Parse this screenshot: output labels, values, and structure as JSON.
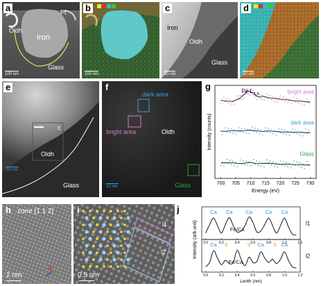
{
  "panels": {
    "a": {
      "label": "a",
      "pt": "Pt",
      "oldh": "Oldh",
      "iron": "Iron",
      "glass": "Glass",
      "scale": "100 nm"
    },
    "b": {
      "label": "b",
      "scale": "100 nm"
    },
    "c": {
      "label": "c",
      "iron": "Iron",
      "oldh": "Oldh",
      "glass": "Glass",
      "scale": "20 nm"
    },
    "d": {
      "label": "d",
      "scale": "20 nm"
    },
    "e": {
      "label": "e",
      "box": "c",
      "oldh": "Oldh",
      "glass": "Glass",
      "scale": "20 nm"
    },
    "f": {
      "label": "f",
      "dark": "dark area",
      "bright": "bright area",
      "oldh": "Oldh",
      "glass": "Glass",
      "scale": "10 nm"
    },
    "h": {
      "label": "h",
      "zone": "zone [1 1 2]",
      "scale": "2 nm"
    },
    "i": {
      "label": "i",
      "l1": "l1",
      "l2": "l2",
      "scale": "0.5 nm"
    }
  },
  "colors": {
    "bright": "#d77ad0",
    "dark": "#3aa0d6",
    "glass": "#2e9e3c",
    "ca": "#2f8ed1",
    "s": "#e0a020",
    "fe": "#1a1a1a",
    "atomYellow": "#f0e030",
    "atomBlue": "#9fd0f0"
  },
  "chart_data": [
    {
      "type": "line",
      "panel": "g",
      "label": "g",
      "annotation": "Fe L",
      "annotation_sub": "2,3",
      "xlabel": "Energy (eV)",
      "ylabel": "Intensity (counts)",
      "xlim": [
        698,
        732
      ],
      "xticks": [
        700,
        705,
        710,
        715,
        720,
        725,
        730
      ],
      "series": [
        {
          "name": "bright area",
          "color": "#d77ad0",
          "x": [
            700,
            702,
            704,
            706,
            707,
            708,
            709,
            710,
            711,
            712,
            713,
            714,
            716,
            718,
            720,
            722,
            724,
            726,
            728,
            730
          ],
          "y": [
            0.55,
            0.52,
            0.5,
            0.62,
            0.7,
            0.82,
            0.95,
            0.9,
            0.85,
            0.72,
            0.7,
            0.72,
            0.66,
            0.63,
            0.6,
            0.58,
            0.54,
            0.52,
            0.5,
            0.48
          ]
        },
        {
          "name": "dark area",
          "color": "#3aa0d6",
          "x": [
            700,
            702,
            704,
            706,
            708,
            710,
            712,
            714,
            716,
            718,
            720,
            722,
            724,
            726,
            728,
            730
          ],
          "y": [
            0.55,
            0.56,
            0.58,
            0.57,
            0.58,
            0.6,
            0.57,
            0.55,
            0.57,
            0.55,
            0.53,
            0.52,
            0.52,
            0.51,
            0.5,
            0.5
          ]
        },
        {
          "name": "Glass",
          "color": "#2e9e3c",
          "x": [
            700,
            702,
            704,
            706,
            708,
            710,
            712,
            714,
            716,
            718,
            720,
            722,
            724,
            726,
            728,
            730
          ],
          "y": [
            0.52,
            0.54,
            0.53,
            0.5,
            0.52,
            0.55,
            0.5,
            0.5,
            0.52,
            0.49,
            0.47,
            0.48,
            0.46,
            0.46,
            0.44,
            0.45
          ]
        }
      ]
    },
    {
      "type": "line",
      "panel": "j",
      "label": "j",
      "xlabel": "Lenth (nm)",
      "ylabel": "Intensity (arb.unit)",
      "xlim": [
        -0.05,
        1.2
      ],
      "xticks": [
        0.0,
        0.2,
        0.4,
        0.6,
        0.8,
        1.0,
        1.2
      ],
      "series": [
        {
          "name": "l1",
          "x": [
            0,
            0.05,
            0.1,
            0.15,
            0.2,
            0.25,
            0.3,
            0.35,
            0.4,
            0.45,
            0.5,
            0.55,
            0.6,
            0.65,
            0.7,
            0.75,
            0.8,
            0.85,
            0.9,
            0.95,
            1.0,
            1.05,
            1.1,
            1.15
          ],
          "y": [
            0.2,
            0.6,
            0.9,
            0.55,
            0.2,
            0.6,
            0.92,
            0.55,
            0.25,
            0.3,
            0.55,
            0.95,
            0.7,
            0.25,
            0.3,
            0.6,
            0.9,
            0.55,
            0.2,
            0.55,
            0.9,
            0.5,
            0.15,
            0.12
          ]
        },
        {
          "name": "l2",
          "x": [
            0,
            0.05,
            0.1,
            0.15,
            0.2,
            0.25,
            0.3,
            0.35,
            0.4,
            0.45,
            0.5,
            0.55,
            0.6,
            0.65,
            0.7,
            0.75,
            0.8,
            0.85,
            0.9,
            0.95,
            1.0,
            1.05,
            1.1,
            1.15
          ],
          "y": [
            0.15,
            0.35,
            0.9,
            0.55,
            0.25,
            0.45,
            0.3,
            0.35,
            0.92,
            0.5,
            0.2,
            0.6,
            0.35,
            0.4,
            0.85,
            0.55,
            0.35,
            0.5,
            0.3,
            0.5,
            0.85,
            0.45,
            0.15,
            0.1
          ]
        }
      ],
      "labels_l1": [
        {
          "text": "Ca",
          "x": 0.1,
          "color": "#2f8ed1"
        },
        {
          "text": "Ca",
          "x": 0.3,
          "color": "#2f8ed1"
        },
        {
          "text": "Ca",
          "x": 0.55,
          "color": "#2f8ed1"
        },
        {
          "text": "Fe/Ca",
          "x": 0.4,
          "color": "#1a1a1a",
          "low": true
        },
        {
          "text": "Ca",
          "x": 0.8,
          "color": "#2f8ed1"
        },
        {
          "text": "Ca",
          "x": 1.0,
          "color": "#2f8ed1"
        }
      ],
      "labels_l2": [
        {
          "text": "Ca",
          "x": 0.1,
          "color": "#2f8ed1"
        },
        {
          "text": "S",
          "x": 0.26,
          "color": "#e0a020"
        },
        {
          "text": "Fe/Ca",
          "x": 0.38,
          "color": "#1a1a1a",
          "low": true
        },
        {
          "text": "S",
          "x": 0.55,
          "color": "#e0a020"
        },
        {
          "text": "Ca",
          "x": 0.7,
          "color": "#2f8ed1"
        },
        {
          "text": "S",
          "x": 0.88,
          "color": "#e0a020"
        },
        {
          "text": "Ca",
          "x": 1.0,
          "color": "#2f8ed1"
        }
      ],
      "tag_l1": "l1",
      "tag_l2": "l2"
    }
  ]
}
